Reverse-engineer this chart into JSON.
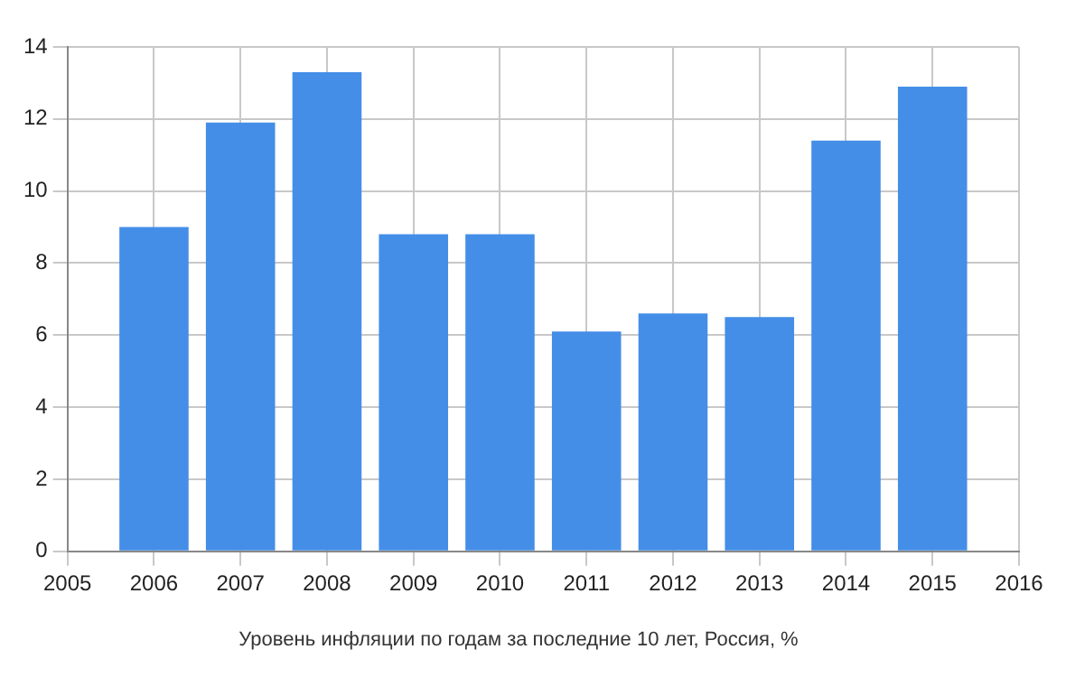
{
  "chart_data": {
    "type": "bar",
    "title": "Уровень инфляции по годам за последние 10 лет, Россия, %",
    "x": [
      2006,
      2007,
      2008,
      2009,
      2010,
      2011,
      2012,
      2013,
      2014,
      2015
    ],
    "values": [
      9.0,
      11.9,
      13.3,
      8.8,
      8.8,
      6.1,
      6.6,
      6.5,
      11.4,
      12.9
    ],
    "color": "#448ee8",
    "xlim": [
      2005,
      2016
    ],
    "xticks": [
      2005,
      2006,
      2007,
      2008,
      2009,
      2010,
      2011,
      2012,
      2013,
      2014,
      2015,
      2016
    ],
    "ylim": [
      0,
      14
    ],
    "yticks": [
      0,
      2,
      4,
      6,
      8,
      10,
      12,
      14
    ],
    "grid": true
  }
}
